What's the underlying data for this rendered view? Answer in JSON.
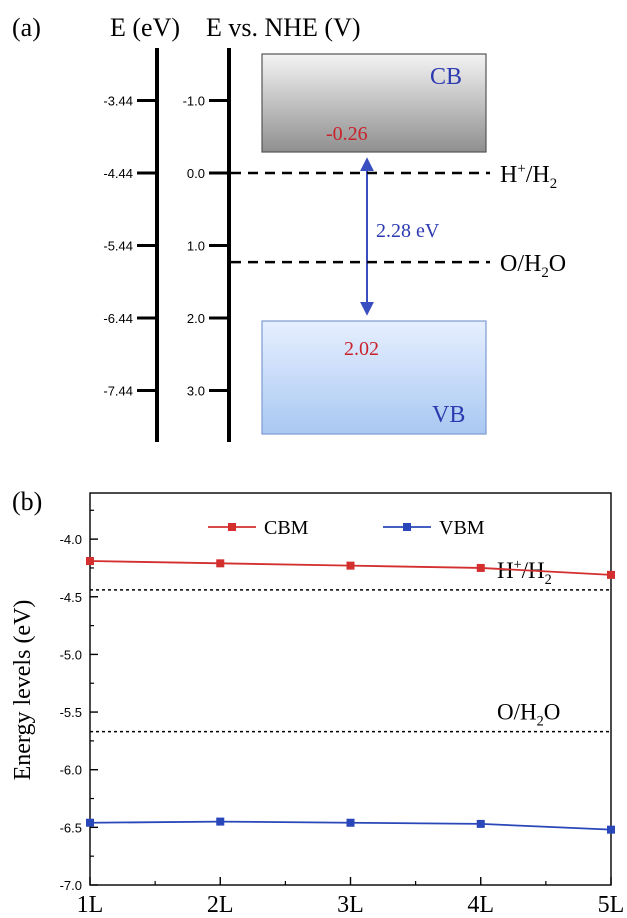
{
  "chart_data": [
    {
      "panel": "(a)",
      "type": "band-diagram",
      "axis_left_title": "E (eV)",
      "axis_right_title": "E vs. NHE (V)",
      "left_ticks": [
        "-3.44",
        "-4.44",
        "-5.44",
        "-6.44",
        "-7.44"
      ],
      "right_ticks": [
        "-1.0",
        "0.0",
        "1.0",
        "2.0",
        "3.0"
      ],
      "right_tick_values": [
        -1.0,
        0.0,
        1.0,
        2.0,
        3.0
      ],
      "cb_label": "CB",
      "vb_label": "VB",
      "cb_value_label": "-0.26",
      "vb_value_label": "2.02",
      "cb_nhe": -0.26,
      "vb_nhe": 2.02,
      "gap_label": "2.28 eV",
      "redox": [
        {
          "name": "H+/H2",
          "base": "H",
          "sup": "+",
          "mid": "/H",
          "sub": "2",
          "tail": "",
          "nhe": 0.0
        },
        {
          "name": "O2/H2O",
          "base": "O",
          "sup": "",
          "mid": "/H",
          "sub": "2",
          "tail": "O",
          "nhe": 1.23
        }
      ],
      "colors": {
        "cb_fill_top": "#f4f4f4",
        "cb_fill_bottom": "#8f8f8f",
        "vb_fill_top": "#e6efff",
        "vb_fill_bottom": "#a9c8f2",
        "label_blue": "#2e3bb0",
        "value_red": "#c8232b",
        "arrow": "#3a4fbf"
      }
    },
    {
      "panel": "(b)",
      "type": "line",
      "categories": [
        "1L",
        "2L",
        "3L",
        "4L",
        "5L"
      ],
      "series": [
        {
          "name": "CBM",
          "values": [
            -4.19,
            -4.21,
            -4.23,
            -4.25,
            -4.31
          ],
          "color": "#d32f2f"
        },
        {
          "name": "VBM",
          "values": [
            -6.46,
            -6.45,
            -6.46,
            -6.47,
            -6.52
          ],
          "color": "#2947b8"
        }
      ],
      "ylabel": "Energy levels (eV)",
      "ylim": [
        -7.0,
        -3.6
      ],
      "yticks": [
        "-7.0",
        "-6.5",
        "-6.0",
        "-5.5",
        "-5.0",
        "-4.5",
        "-4.0"
      ],
      "ytick_values": [
        -7.0,
        -6.5,
        -6.0,
        -5.5,
        -5.0,
        -4.5,
        -4.0
      ],
      "reference_lines": [
        {
          "name": "H+/H2",
          "base": "H",
          "sup": "+",
          "mid": "/H",
          "sub": "2",
          "tail": "",
          "value": -4.44
        },
        {
          "name": "O2/H2O",
          "base": "O",
          "sup": "",
          "mid": "/H",
          "sub": "2",
          "tail": "O",
          "value": -5.67
        }
      ],
      "legend": "top-center",
      "grid": false
    }
  ]
}
